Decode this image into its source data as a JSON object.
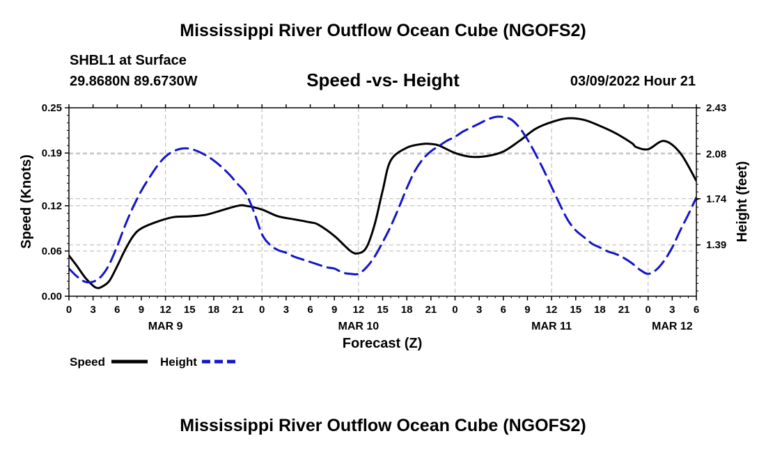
{
  "page": {
    "title": "Mississippi River Outflow Ocean Cube (NGOFS2)",
    "footer_title": "Mississippi River Outflow Ocean Cube (NGOFS2)",
    "station_name": "SHBL1 at Surface",
    "station_coords": "29.8680N  89.6730W",
    "forecast_time": "03/09/2022 Hour 21"
  },
  "chart_data": {
    "type": "line",
    "title": "Speed -vs- Height",
    "xlabel": "Forecast (Z)",
    "ylabel": "Speed (Knots)",
    "y2label": "Height (feet)",
    "xlim": [
      0,
      78
    ],
    "ylim": [
      0,
      0.25
    ],
    "y2lim": [
      1.0,
      2.43
    ],
    "yticks": [
      0,
      0.06,
      0.12,
      0.19,
      0.25
    ],
    "ytick_labels": [
      "0.00",
      "0.06",
      "0.12",
      "0.19",
      "0.25"
    ],
    "y2ticks": [
      1.39,
      1.74,
      2.08,
      2.43
    ],
    "y2tick_labels": [
      "1.39",
      "1.74",
      "2.08",
      "2.43"
    ],
    "xticks": [
      0,
      3,
      6,
      9,
      12,
      15,
      18,
      21,
      24,
      27,
      30,
      33,
      36,
      39,
      42,
      45,
      48,
      51,
      54,
      57,
      60,
      63,
      66,
      69,
      72,
      75,
      78
    ],
    "xtick_labels": [
      "0",
      "3",
      "6",
      "9",
      "12",
      "15",
      "18",
      "21",
      "0",
      "3",
      "6",
      "9",
      "12",
      "15",
      "18",
      "21",
      "0",
      "3",
      "6",
      "9",
      "12",
      "15",
      "18",
      "21",
      "0",
      "3",
      "6"
    ],
    "date_labels": [
      {
        "x": 12,
        "label": "MAR 9"
      },
      {
        "x": 36,
        "label": "MAR 10"
      },
      {
        "x": 60,
        "label": "MAR 11"
      },
      {
        "x": 75,
        "label": "MAR 12"
      }
    ],
    "grid": true,
    "legend": [
      {
        "label": "Speed",
        "color": "#000000",
        "dash": "solid"
      },
      {
        "label": "Height",
        "color": "#1414c8",
        "dash": "dashed"
      }
    ],
    "series": [
      {
        "name": "Speed",
        "axis": "left",
        "color": "#000000",
        "dash": "solid",
        "x": [
          0,
          1,
          2,
          3,
          3.5,
          4,
          5,
          6,
          7,
          8,
          9,
          11,
          13,
          15,
          17,
          19,
          21,
          22,
          24,
          26,
          28,
          30,
          31,
          33,
          35,
          36,
          37,
          38,
          39,
          40,
          42,
          44,
          45,
          46,
          48,
          50,
          52,
          54,
          56,
          58,
          60,
          62,
          64,
          66,
          68,
          70,
          70.5,
          72,
          74,
          76,
          78
        ],
        "values": [
          0.054,
          0.04,
          0.025,
          0.014,
          0.011,
          0.012,
          0.02,
          0.04,
          0.062,
          0.08,
          0.09,
          0.099,
          0.105,
          0.106,
          0.108,
          0.114,
          0.12,
          0.12,
          0.115,
          0.106,
          0.102,
          0.098,
          0.095,
          0.08,
          0.06,
          0.057,
          0.065,
          0.095,
          0.14,
          0.18,
          0.197,
          0.202,
          0.202,
          0.2,
          0.19,
          0.185,
          0.186,
          0.192,
          0.206,
          0.222,
          0.231,
          0.236,
          0.234,
          0.226,
          0.216,
          0.203,
          0.198,
          0.195,
          0.206,
          0.19,
          0.153
        ]
      },
      {
        "name": "Height",
        "axis": "right",
        "color": "#1414c8",
        "dash": "dashed",
        "x": [
          0,
          1,
          2,
          3,
          4,
          5,
          6,
          7,
          8,
          9,
          10,
          11,
          12,
          13,
          14,
          15,
          16,
          17,
          18,
          19,
          20,
          21,
          22,
          23,
          24,
          25,
          26,
          27,
          28,
          29,
          30,
          31,
          32,
          33,
          34,
          35,
          36,
          37,
          38,
          39,
          40,
          41,
          42,
          43,
          44,
          45,
          46,
          47,
          48,
          49,
          50,
          51,
          52,
          53,
          54,
          55,
          56,
          57,
          58,
          59,
          60,
          61,
          62,
          63,
          64,
          65,
          66,
          67,
          68,
          69,
          70,
          71,
          72,
          73,
          74,
          75,
          76,
          77,
          78
        ],
        "values": [
          1.21,
          1.15,
          1.11,
          1.11,
          1.15,
          1.24,
          1.38,
          1.54,
          1.68,
          1.8,
          1.9,
          1.99,
          2.06,
          2.1,
          2.12,
          2.12,
          2.1,
          2.07,
          2.03,
          1.98,
          1.92,
          1.85,
          1.78,
          1.64,
          1.47,
          1.39,
          1.35,
          1.33,
          1.3,
          1.28,
          1.26,
          1.24,
          1.22,
          1.21,
          1.18,
          1.17,
          1.17,
          1.22,
          1.3,
          1.41,
          1.53,
          1.67,
          1.82,
          1.95,
          2.04,
          2.1,
          2.14,
          2.18,
          2.21,
          2.25,
          2.28,
          2.31,
          2.34,
          2.36,
          2.36,
          2.34,
          2.28,
          2.19,
          2.08,
          1.96,
          1.83,
          1.7,
          1.58,
          1.5,
          1.45,
          1.4,
          1.37,
          1.34,
          1.32,
          1.29,
          1.25,
          1.2,
          1.17,
          1.2,
          1.27,
          1.37,
          1.5,
          1.62,
          1.75
        ]
      }
    ]
  }
}
